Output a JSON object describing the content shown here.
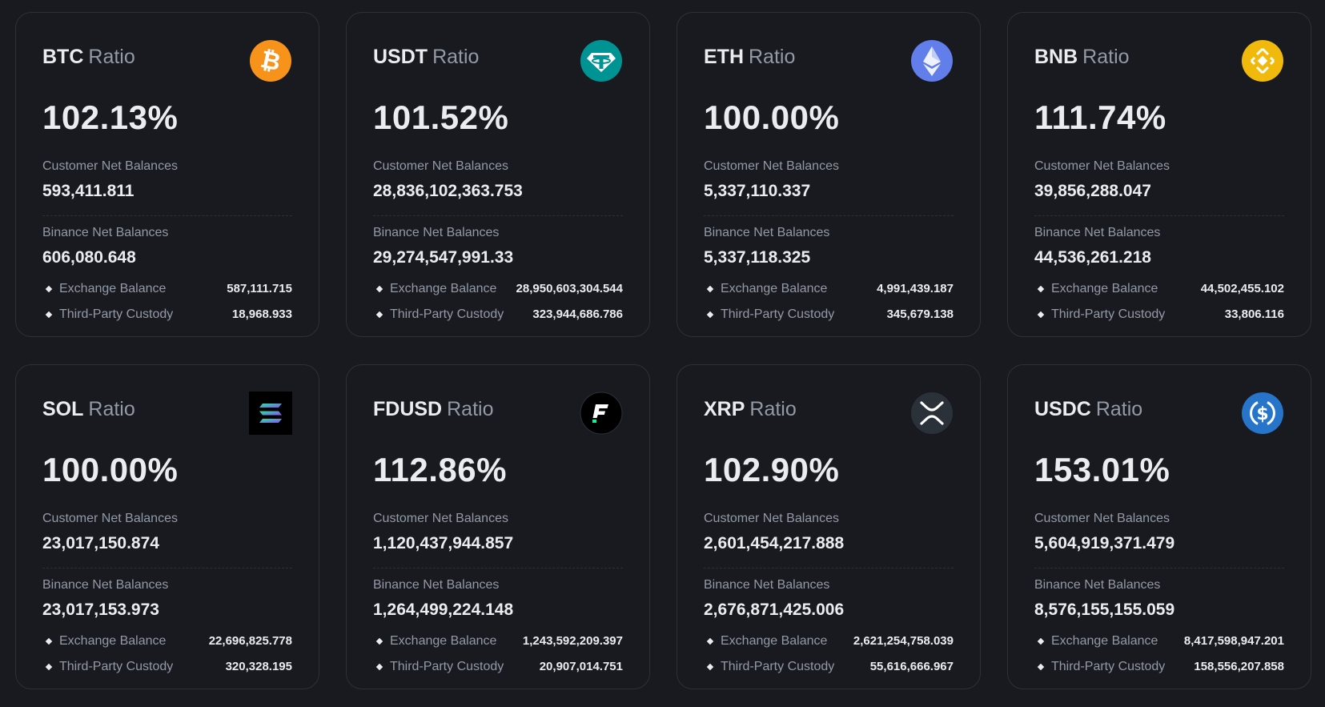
{
  "labels": {
    "ratio": "Ratio",
    "customer": "Customer Net Balances",
    "binance": "Binance Net Balances",
    "exchange": "Exchange Balance",
    "custody": "Third-Party Custody"
  },
  "colors": {
    "background": "#181a20",
    "card_border": "#2b3139",
    "text_primary": "#eaecef",
    "text_secondary": "#929aa5"
  },
  "cards": [
    {
      "symbol": "BTC",
      "ratio": "102.13%",
      "customer": "593,411.811",
      "binance": "606,080.648",
      "exchange": "587,111.715",
      "custody": "18,968.933",
      "icon": "btc-icon",
      "icon_color": "#f7931a"
    },
    {
      "symbol": "USDT",
      "ratio": "101.52%",
      "customer": "28,836,102,363.753",
      "binance": "29,274,547,991.33",
      "exchange": "28,950,603,304.544",
      "custody": "323,944,686.786",
      "icon": "usdt-icon",
      "icon_color": "#009393"
    },
    {
      "symbol": "ETH",
      "ratio": "100.00%",
      "customer": "5,337,110.337",
      "binance": "5,337,118.325",
      "exchange": "4,991,439.187",
      "custody": "345,679.138",
      "icon": "eth-icon",
      "icon_color": "#627eea"
    },
    {
      "symbol": "BNB",
      "ratio": "111.74%",
      "customer": "39,856,288.047",
      "binance": "44,536,261.218",
      "exchange": "44,502,455.102",
      "custody": "33,806.116",
      "icon": "bnb-icon",
      "icon_color": "#f0b90b"
    },
    {
      "symbol": "SOL",
      "ratio": "100.00%",
      "customer": "23,017,150.874",
      "binance": "23,017,153.973",
      "exchange": "22,696,825.778",
      "custody": "320,328.195",
      "icon": "sol-icon",
      "icon_color": "#000000"
    },
    {
      "symbol": "FDUSD",
      "ratio": "112.86%",
      "customer": "1,120,437,944.857",
      "binance": "1,264,499,224.148",
      "exchange": "1,243,592,209.397",
      "custody": "20,907,014.751",
      "icon": "fdusd-icon",
      "icon_color": "#000000"
    },
    {
      "symbol": "XRP",
      "ratio": "102.90%",
      "customer": "2,601,454,217.888",
      "binance": "2,676,871,425.006",
      "exchange": "2,621,254,758.039",
      "custody": "55,616,666.967",
      "icon": "xrp-icon",
      "icon_color": "#23292f"
    },
    {
      "symbol": "USDC",
      "ratio": "153.01%",
      "customer": "5,604,919,371.479",
      "binance": "8,576,155,155.059",
      "exchange": "8,417,598,947.201",
      "custody": "158,556,207.858",
      "icon": "usdc-icon",
      "icon_color": "#2775ca"
    }
  ]
}
